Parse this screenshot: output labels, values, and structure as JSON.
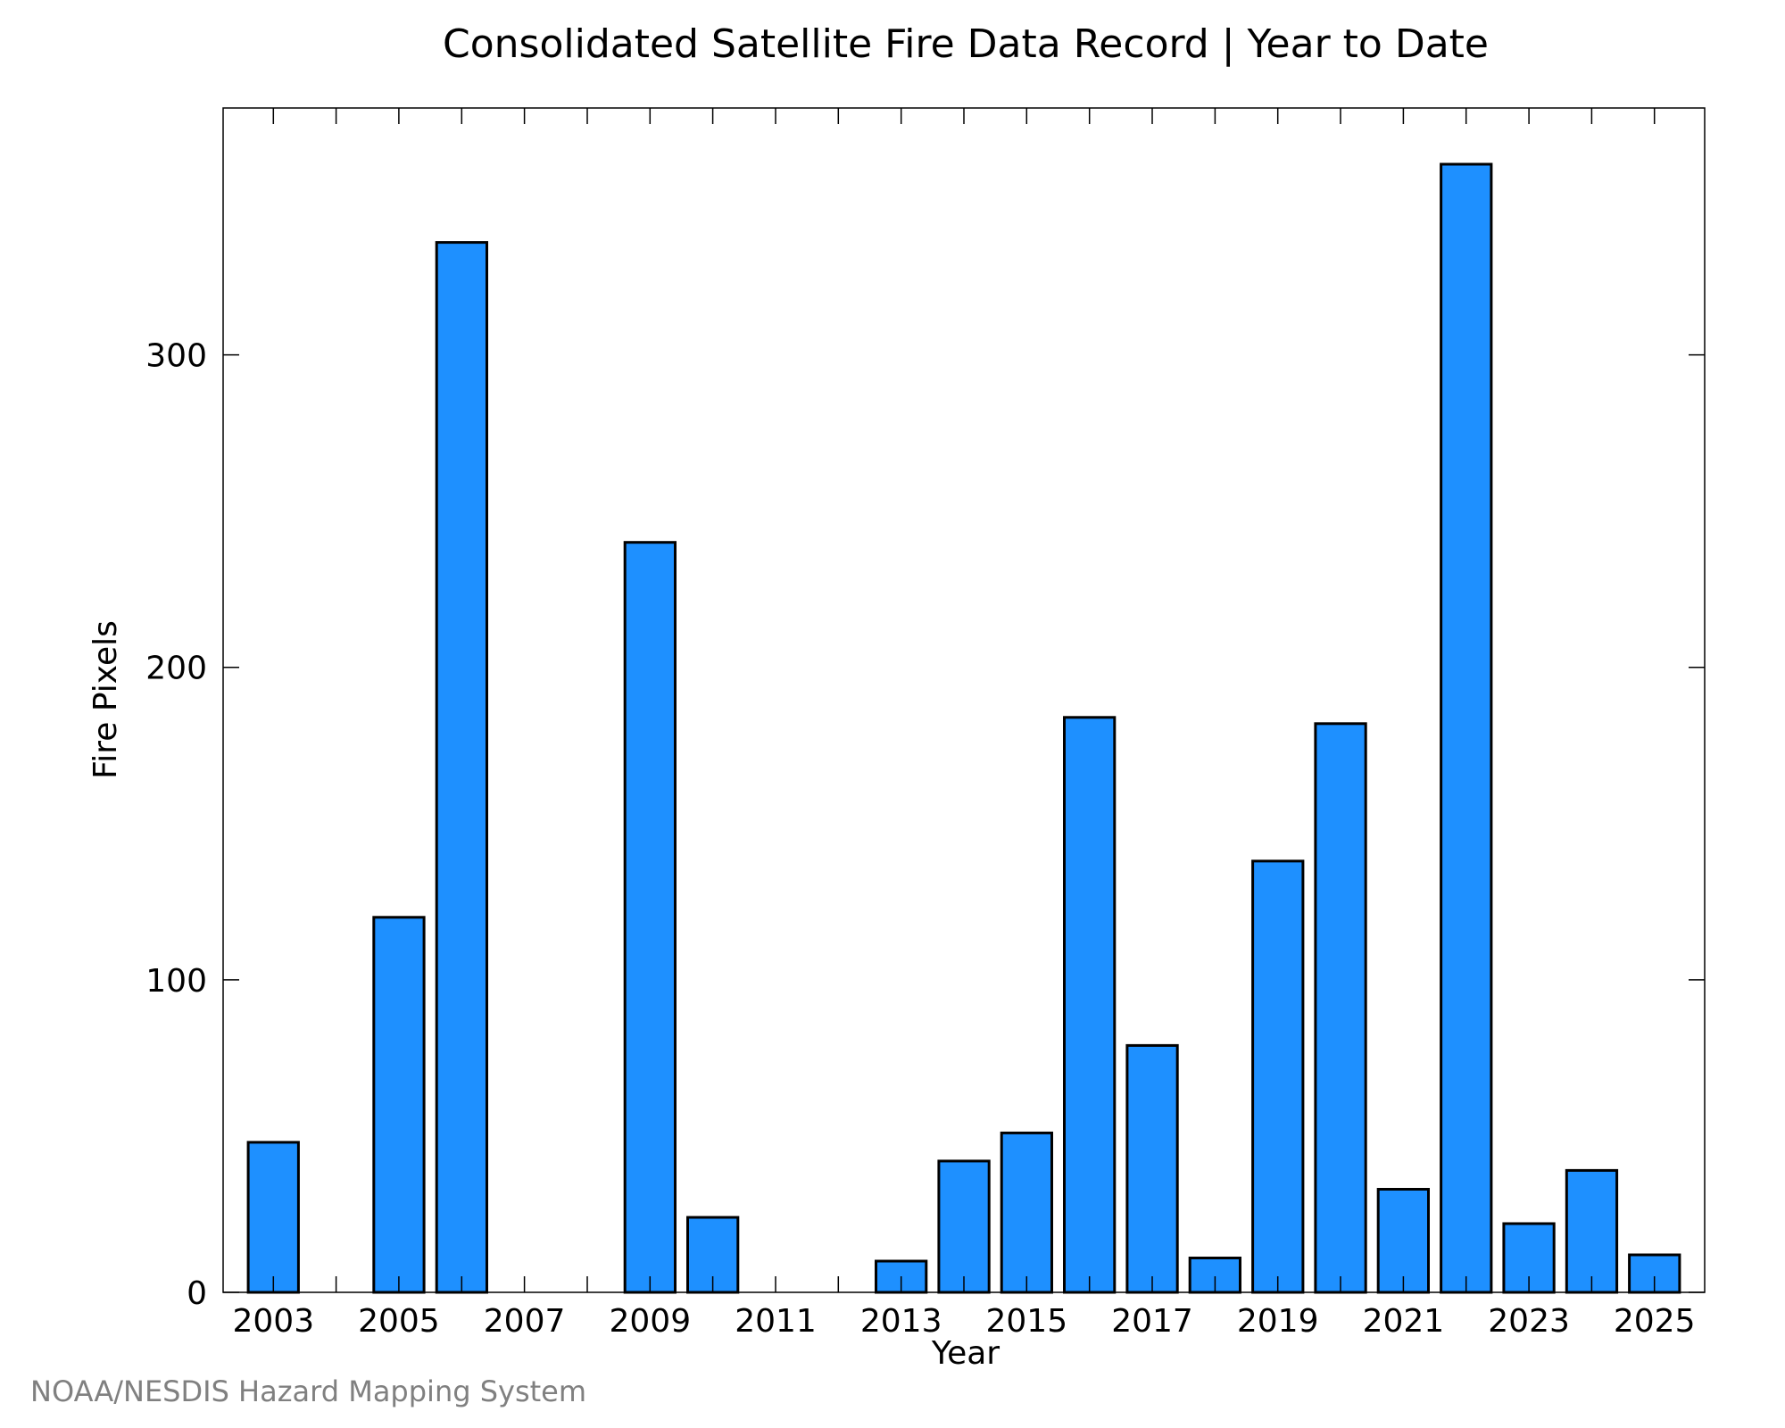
{
  "chart_data": {
    "type": "bar",
    "title": "Consolidated Satellite Fire Data Record | Year to Date",
    "xlabel": "Year",
    "ylabel": "Fire Pixels",
    "x": [
      2003,
      2004,
      2005,
      2006,
      2007,
      2008,
      2009,
      2010,
      2011,
      2012,
      2013,
      2014,
      2015,
      2016,
      2017,
      2018,
      2019,
      2020,
      2021,
      2022,
      2023,
      2024,
      2025
    ],
    "values": [
      48,
      0,
      120,
      336,
      0,
      0,
      240,
      24,
      0,
      0,
      10,
      42,
      51,
      184,
      79,
      11,
      138,
      182,
      33,
      361,
      22,
      39,
      12
    ],
    "xticks": [
      "2003",
      "2005",
      "2007",
      "2009",
      "2011",
      "2013",
      "2015",
      "2017",
      "2019",
      "2021",
      "2023",
      "2025"
    ],
    "yticks": [
      "0",
      "100",
      "200",
      "300"
    ],
    "ylim": [
      0,
      379
    ],
    "xlim": [
      2002.2,
      2025.8
    ],
    "bar_color": "#1e90ff",
    "edge_color": "#000000",
    "grid": false,
    "legend": "none"
  },
  "credit": "NOAA/NESDIS Hazard Mapping System"
}
